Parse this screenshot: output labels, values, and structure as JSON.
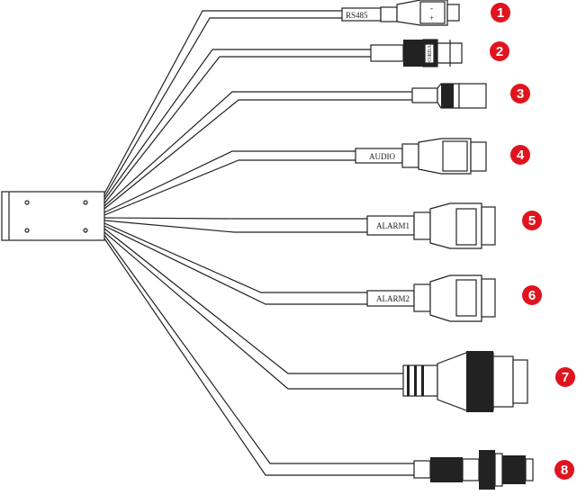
{
  "connectors": [
    {
      "number": "1",
      "label": "RS485",
      "polarity": [
        "-",
        "+"
      ]
    },
    {
      "number": "2",
      "label": "VIDEO"
    },
    {
      "number": "3",
      "label": ""
    },
    {
      "number": "4",
      "label": "AUDIO",
      "terminal_label": "AUDIO"
    },
    {
      "number": "5",
      "label": "ALARM1",
      "terminal_label": "ALARM"
    },
    {
      "number": "6",
      "label": "ALARM2",
      "terminal_label": "ALARM"
    },
    {
      "number": "7",
      "label": ""
    },
    {
      "number": "8",
      "label": ""
    }
  ],
  "colors": {
    "badge": "#e0141e",
    "line": "#222222"
  }
}
